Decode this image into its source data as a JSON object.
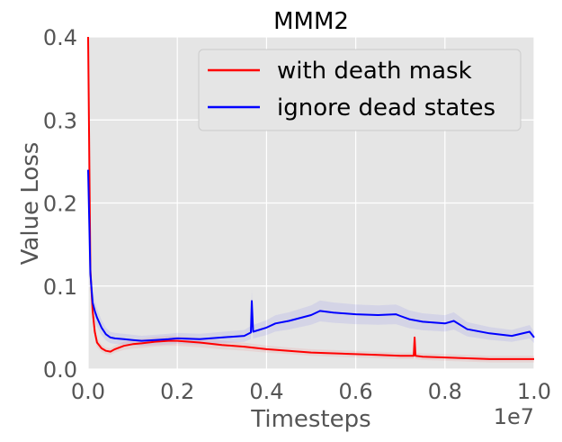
{
  "chart_data": {
    "type": "line",
    "title": "MMM2",
    "xlabel": "Timesteps",
    "ylabel": "Value Loss",
    "x_offset_label": "1e7",
    "xlim": [
      0,
      1.0
    ],
    "ylim": [
      0,
      0.4
    ],
    "xticks": [
      "0.0",
      "0.2",
      "0.4",
      "0.6",
      "0.8",
      "1.0"
    ],
    "yticks": [
      "0.0",
      "0.1",
      "0.2",
      "0.3",
      "0.4"
    ],
    "grid": true,
    "legend_position": "top-right",
    "background_color": "#e5e5e5",
    "series": [
      {
        "name": "with death mask",
        "color": "#ff0000",
        "x": [
          0.0,
          0.005,
          0.01,
          0.015,
          0.02,
          0.03,
          0.04,
          0.05,
          0.06,
          0.08,
          0.1,
          0.12,
          0.15,
          0.18,
          0.2,
          0.25,
          0.3,
          0.35,
          0.4,
          0.45,
          0.5,
          0.55,
          0.6,
          0.65,
          0.7,
          0.73,
          0.732,
          0.734,
          0.75,
          0.8,
          0.85,
          0.9,
          0.95,
          1.0
        ],
        "y": [
          0.4,
          0.12,
          0.07,
          0.045,
          0.032,
          0.025,
          0.022,
          0.021,
          0.024,
          0.028,
          0.03,
          0.031,
          0.033,
          0.034,
          0.034,
          0.032,
          0.029,
          0.027,
          0.024,
          0.022,
          0.02,
          0.019,
          0.018,
          0.017,
          0.016,
          0.016,
          0.038,
          0.016,
          0.015,
          0.014,
          0.013,
          0.012,
          0.012,
          0.012
        ]
      },
      {
        "name": "ignore dead states",
        "color": "#0000ff",
        "x": [
          0.0,
          0.005,
          0.01,
          0.015,
          0.02,
          0.03,
          0.04,
          0.05,
          0.06,
          0.08,
          0.1,
          0.12,
          0.15,
          0.18,
          0.2,
          0.25,
          0.3,
          0.35,
          0.365,
          0.367,
          0.37,
          0.4,
          0.42,
          0.45,
          0.5,
          0.52,
          0.55,
          0.6,
          0.65,
          0.69,
          0.7,
          0.72,
          0.75,
          0.8,
          0.82,
          0.85,
          0.9,
          0.95,
          0.99,
          1.0
        ],
        "y": [
          0.24,
          0.115,
          0.08,
          0.07,
          0.062,
          0.05,
          0.042,
          0.038,
          0.037,
          0.036,
          0.035,
          0.034,
          0.035,
          0.036,
          0.037,
          0.036,
          0.038,
          0.04,
          0.044,
          0.082,
          0.045,
          0.05,
          0.055,
          0.058,
          0.065,
          0.07,
          0.068,
          0.066,
          0.065,
          0.066,
          0.064,
          0.06,
          0.057,
          0.055,
          0.058,
          0.048,
          0.043,
          0.04,
          0.045,
          0.038
        ]
      }
    ]
  }
}
